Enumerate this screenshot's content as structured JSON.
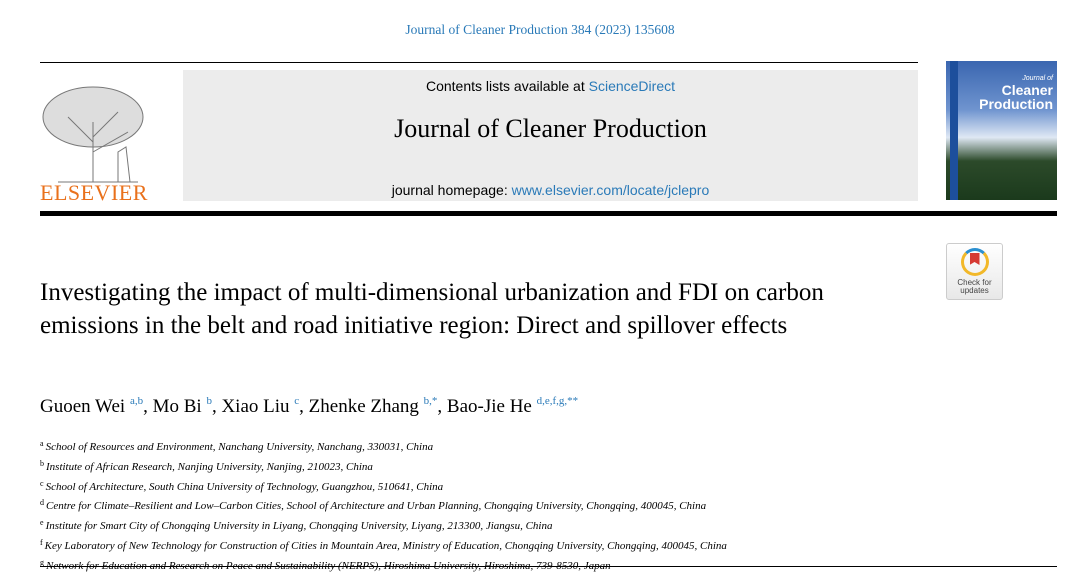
{
  "citation": "Journal of Cleaner Production 384 (2023) 135608",
  "publisher": "ELSEVIER",
  "contents_prefix": "Contents lists available at ",
  "contents_link": "ScienceDirect",
  "journal_title": "Journal of Cleaner Production",
  "homepage_prefix": "journal homepage: ",
  "homepage_link": "www.elsevier.com/locate/jclepro",
  "cover": {
    "line1": "Journal of",
    "line2": "Cleaner",
    "line3": "Production"
  },
  "check_updates": {
    "line1": "Check for",
    "line2": "updates"
  },
  "title": "Investigating the impact of multi-dimensional urbanization and FDI on carbon emissions in the belt and road initiative region: Direct and spillover effects",
  "authors": [
    {
      "name": "Guoen Wei",
      "marks": "a,b",
      "sep": ", "
    },
    {
      "name": "Mo Bi",
      "marks": "b",
      "sep": ", "
    },
    {
      "name": "Xiao Liu",
      "marks": "c",
      "sep": ", "
    },
    {
      "name": "Zhenke Zhang",
      "marks": "b,*",
      "sep": ", "
    },
    {
      "name": "Bao-Jie He",
      "marks": "d,e,f,g,**",
      "sep": ""
    }
  ],
  "affiliations": [
    {
      "mark": "a",
      "text": "School of Resources and Environment, Nanchang University, Nanchang, 330031, China"
    },
    {
      "mark": "b",
      "text": "Institute of African Research, Nanjing University, Nanjing, 210023, China"
    },
    {
      "mark": "c",
      "text": "School of Architecture, South China University of Technology, Guangzhou, 510641, China"
    },
    {
      "mark": "d",
      "text": "Centre for Climate–Resilient and Low–Carbon Cities, School of Architecture and Urban Planning, Chongqing University, Chongqing, 400045, China"
    },
    {
      "mark": "e",
      "text": "Institute for Smart City of Chongqing University in Liyang, Chongqing University, Liyang, 213300, Jiangsu, China"
    },
    {
      "mark": "f",
      "text": "Key Laboratory of New Technology for Construction of Cities in Mountain Area, Ministry of Education, Chongqing University, Chongqing, 400045, China"
    },
    {
      "mark": "g",
      "text": "Network for Education and Research on Peace and Sustainability (NERPS), Hiroshima University, Hiroshima, 739-8530, Japan"
    }
  ],
  "colors": {
    "link": "#2a7ab8",
    "elsevier": "#e9711c"
  }
}
